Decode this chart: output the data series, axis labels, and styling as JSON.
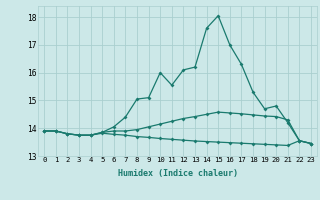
{
  "xlabel": "Humidex (Indice chaleur)",
  "x": [
    0,
    1,
    2,
    3,
    4,
    5,
    6,
    7,
    8,
    9,
    10,
    11,
    12,
    13,
    14,
    15,
    16,
    17,
    18,
    19,
    20,
    21,
    22,
    23
  ],
  "line1": [
    13.9,
    13.9,
    13.8,
    13.75,
    13.75,
    13.85,
    14.05,
    14.4,
    15.05,
    15.1,
    16.0,
    15.55,
    16.1,
    16.2,
    17.6,
    18.05,
    17.0,
    16.3,
    15.3,
    14.7,
    14.8,
    14.2,
    13.55,
    13.45
  ],
  "line2": [
    13.9,
    13.9,
    13.8,
    13.75,
    13.75,
    13.85,
    13.9,
    13.9,
    13.95,
    14.05,
    14.15,
    14.25,
    14.35,
    14.42,
    14.5,
    14.58,
    14.55,
    14.52,
    14.48,
    14.44,
    14.42,
    14.3,
    13.55,
    13.45
  ],
  "line3": [
    13.9,
    13.9,
    13.8,
    13.75,
    13.75,
    13.82,
    13.78,
    13.75,
    13.7,
    13.67,
    13.63,
    13.6,
    13.57,
    13.54,
    13.52,
    13.5,
    13.48,
    13.46,
    13.44,
    13.42,
    13.4,
    13.38,
    13.55,
    13.45
  ],
  "line_color": "#1a7a6e",
  "bg_color": "#cce8e8",
  "grid_color": "#aacfcf",
  "ylim": [
    13.0,
    18.4
  ],
  "yticks": [
    13,
    14,
    15,
    16,
    17,
    18
  ],
  "xlim": [
    -0.5,
    23.5
  ],
  "marker": "D",
  "markersize": 2.0,
  "linewidth": 0.9,
  "xlabel_fontsize": 6.0,
  "tick_fontsize": 5.2
}
